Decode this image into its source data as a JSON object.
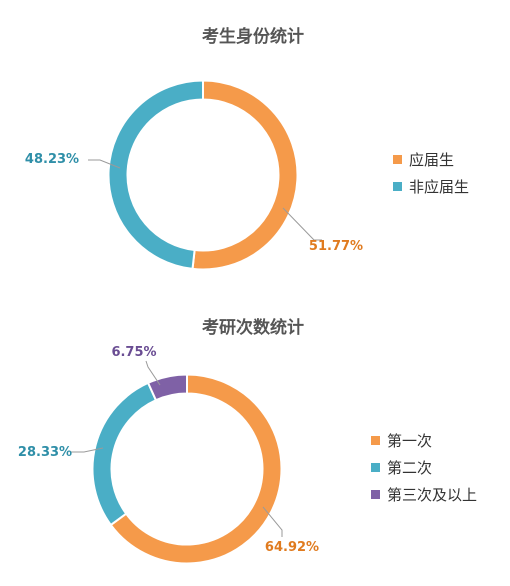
{
  "chart_data": [
    {
      "type": "pie",
      "title": "考生身份统计",
      "categories": [
        "应届生",
        "非应届生"
      ],
      "values": [
        51.77,
        48.23
      ],
      "labels": [
        "51.77%",
        "48.23%"
      ],
      "colors": [
        "#f59a4a",
        "#4aaec6"
      ],
      "legend_position": "right"
    },
    {
      "type": "pie",
      "title": "考研次数统计",
      "categories": [
        "第一次",
        "第二次",
        "第三次及以上"
      ],
      "values": [
        64.92,
        28.33,
        6.75
      ],
      "labels": [
        "64.92%",
        "28.33%",
        "6.75%"
      ],
      "colors": [
        "#f59a4a",
        "#4aaec6",
        "#7f61a6"
      ],
      "legend_position": "right"
    }
  ]
}
